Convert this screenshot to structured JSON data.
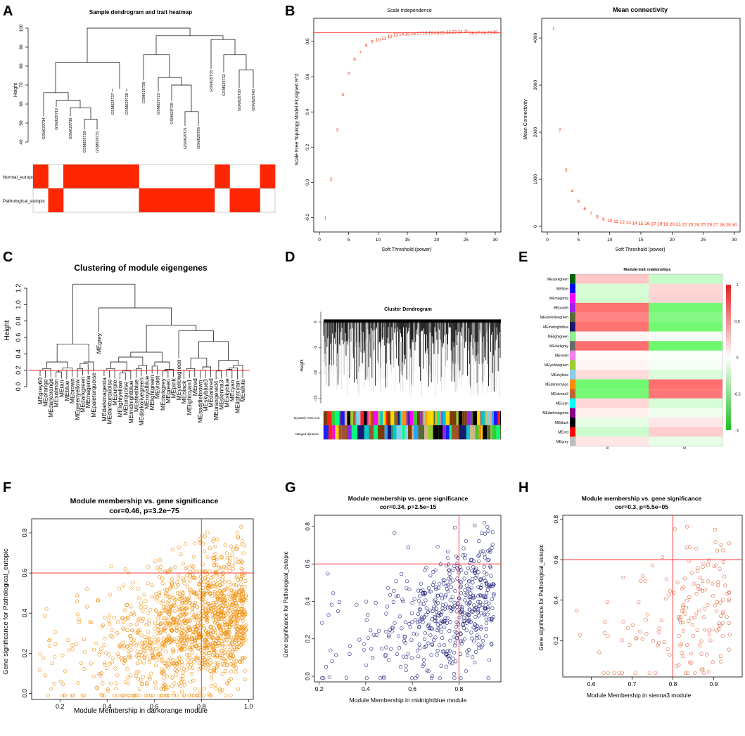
{
  "letters": [
    "A",
    "B",
    "C",
    "D",
    "E",
    "F",
    "G",
    "H"
  ],
  "colors": {
    "red": "#fe2600",
    "line": "#000000",
    "orange": "#f08a00",
    "navy": "#1a1a7a",
    "salmon": "#e0623a",
    "refline": "#ff2020"
  },
  "chart_data": [
    {
      "id": "A",
      "type": "dendrogram+heatmap",
      "title": "Sample dendrogram and trait heatmap",
      "ylabel": "Height",
      "ylim": [
        40,
        100
      ],
      "yticks": [
        "40",
        "50",
        "60",
        "70",
        "80",
        "90",
        "100"
      ],
      "samples": [
        "GSM629734",
        "GSM629719",
        "GSM629736",
        "GSM629720",
        "GSM629731",
        "GSM629737",
        "GSM629738",
        "GSM629739",
        "GSM629723",
        "GSM629728",
        "GSM629721",
        "GSM629726",
        "GSM629733",
        "GSM629732",
        "GSM629730",
        "GSM629740"
      ],
      "traits": [
        "Normal_eutopic",
        "Pathological_eutopic"
      ],
      "normal": [
        1,
        0,
        1,
        1,
        1,
        1,
        1,
        0,
        0,
        0,
        0,
        0,
        1,
        0,
        0,
        1
      ],
      "pathological": [
        0,
        1,
        0,
        0,
        0,
        0,
        0,
        1,
        1,
        1,
        1,
        1,
        0,
        1,
        1,
        0
      ]
    },
    {
      "id": "B1",
      "type": "text-scatter",
      "title": "Scale independence",
      "xlabel": "Soft Threshold (power)",
      "ylabel": "Scale Free Topology Model Fit,signed R^2",
      "xlim": [
        0,
        30
      ],
      "ylim": [
        -0.25,
        0.9
      ],
      "hline": 0.85,
      "xticks": [
        "0",
        "5",
        "10",
        "15",
        "20",
        "25",
        "30"
      ],
      "yticks": [
        "-0.2",
        "0.0",
        "0.2",
        "0.4",
        "0.6",
        "0.8"
      ],
      "x": [
        1,
        2,
        3,
        4,
        5,
        6,
        7,
        8,
        9,
        10,
        11,
        12,
        13,
        14,
        15,
        16,
        17,
        18,
        19,
        20,
        21,
        22,
        23,
        24,
        25,
        26,
        27,
        28,
        29,
        30
      ],
      "y": [
        -0.2,
        0.02,
        0.3,
        0.5,
        0.62,
        0.7,
        0.74,
        0.78,
        0.8,
        0.81,
        0.82,
        0.83,
        0.84,
        0.845,
        0.845,
        0.846,
        0.848,
        0.85,
        0.85,
        0.85,
        0.852,
        0.855,
        0.856,
        0.857,
        0.858,
        0.85,
        0.85,
        0.85,
        0.852,
        0.855
      ]
    },
    {
      "id": "B2",
      "type": "text-scatter",
      "title": "Mean connectivity",
      "xlabel": "Soft Threshold (power)",
      "ylabel": "Mean Connectivity",
      "xlim": [
        0,
        30
      ],
      "ylim": [
        0,
        4300
      ],
      "xticks": [
        "0",
        "5",
        "10",
        "15",
        "20",
        "25",
        "30"
      ],
      "yticks": [
        "0",
        "1000",
        "2000",
        "3000",
        "4000"
      ],
      "x": [
        1,
        2,
        3,
        4,
        5,
        6,
        7,
        8,
        9,
        10,
        11,
        12,
        13,
        14,
        15,
        16,
        17,
        18,
        19,
        20,
        21,
        22,
        23,
        24,
        25,
        26,
        27,
        28,
        29,
        30
      ],
      "y": [
        4200,
        2060,
        1200,
        760,
        540,
        380,
        280,
        210,
        160,
        130,
        110,
        95,
        85,
        75,
        70,
        65,
        60,
        58,
        55,
        52,
        50,
        48,
        46,
        45,
        44,
        43,
        42,
        41,
        40,
        39
      ]
    },
    {
      "id": "C",
      "type": "dendrogram",
      "title": "Clustering of module eigengenes",
      "ylabel": "Height",
      "ylim": [
        0,
        1.35
      ],
      "yticks": [
        "0.0",
        "0.2",
        "0.4",
        "0.6",
        "0.8",
        "1.0",
        "1.2"
      ],
      "cut": 0.2,
      "leaves": [
        "MEgrey60",
        "MEorange",
        "MEdarkorange",
        "MEsalmon",
        "MEtan",
        "MEblue",
        "MEbrown",
        "MEgreenyellow",
        "MEdarkgreen",
        "MEmagenta",
        "MEpaleturquoise",
        "MEgrey",
        "MEdarkmagenta",
        "MEdarkturquoise",
        "MEpurple",
        "MElightyellow",
        "MEturquoise",
        "MEmidnightblue",
        "MEsteelblue",
        "MEdarkolivegreen",
        "MEroyalblue",
        "MElightgreen",
        "MEviolet",
        "MEdarkgrey",
        "MEgreen",
        "MEpink",
        "MEyellowgreen",
        "MEblack",
        "MElightcyan1",
        "MEred",
        "MEsaddlebrown",
        "MEskyblue3",
        "MEdarkred",
        "MEorangered4",
        "MEsienna3",
        "MEskyblue",
        "MEcyan",
        "MElightcyan",
        "MEwhite"
      ]
    },
    {
      "id": "D",
      "type": "dendrogram+colorbars",
      "title": "Cluster Dendrogram",
      "ylabel": "Height",
      "yticks": [
        "0",
        "-5",
        "-10",
        "-15"
      ],
      "rows": [
        "Dynamic Tree Cut",
        "Merged dynamic"
      ],
      "palette": [
        "#2aa0ff",
        "#ff8c00",
        "#00c8c8",
        "#7a3a00",
        "#ff2020",
        "#8a2be2",
        "#1a1aff",
        "#ffd700",
        "#32cd32",
        "#ff69b4",
        "#000000",
        "#a0522d",
        "#87ceeb",
        "#556b2f",
        "#ff00ff",
        "#d2b48c",
        "#9acd32",
        "#191970",
        "#ffa500",
        "#00ff7f"
      ]
    },
    {
      "id": "E",
      "type": "heatmap",
      "title": "Module-trait relationships",
      "columns": [
        "EU",
        "EC"
      ],
      "rows": [
        "MEdarkgreen",
        "MEblue",
        "MEmagenta",
        "MEpurple",
        "MEdarkolivegreen",
        "MEmidnightblue",
        "MElightgreen",
        "MEdarkgrey",
        "MEviolet",
        "MEyellowgreen",
        "MEskyblue",
        "MEdarkorange",
        "MEsienna3",
        "MEcyan",
        "MEdarkmagenta",
        "MEblack",
        "MEred",
        "MEgrey"
      ],
      "row_colors": [
        "#006400",
        "#0000ff",
        "#ff00ff",
        "#a020f0",
        "#556b2f",
        "#191970",
        "#90ee90",
        "#696969",
        "#ee82ee",
        "#9acd32",
        "#87ceeb",
        "#ff8c00",
        "#c0662c",
        "#00ffff",
        "#8b008b",
        "#000000",
        "#ff0000",
        "#bebebe"
      ],
      "eu": [
        0.28,
        -0.2,
        -0.22,
        0.7,
        0.62,
        0.7,
        0.05,
        0.72,
        0.02,
        0.05,
        0.18,
        -0.72,
        -0.68,
        0.2,
        0.08,
        -0.12,
        -0.25,
        0.12
      ],
      "ec": [
        -0.28,
        0.2,
        0.22,
        -0.7,
        -0.62,
        -0.7,
        -0.05,
        -0.72,
        -0.02,
        -0.05,
        -0.18,
        0.72,
        0.68,
        -0.2,
        -0.08,
        0.12,
        0.25,
        -0.12
      ],
      "legend_ticks": [
        "1",
        "0.5",
        "0",
        "-0.5",
        "-1"
      ]
    },
    {
      "id": "F",
      "type": "scatter",
      "title": "Module membership vs. gene significance",
      "subtitle": "cor=0.46, p=3.2e−75",
      "xlabel": "Module Membership in darkorange module",
      "ylabel": "Gene significance for  Pathological_eutopic",
      "xlim": [
        0.08,
        1.02
      ],
      "ylim": [
        -0.03,
        0.87
      ],
      "vline": 0.8,
      "hline": 0.6,
      "xticks": [
        "0.2",
        "0.4",
        "0.6",
        "0.8",
        "1.0"
      ],
      "yticks": [
        "0.0",
        "0.2",
        "0.4",
        "0.6",
        "0.8"
      ],
      "n": 1400,
      "cor": 0.46
    },
    {
      "id": "G",
      "type": "scatter",
      "title": "Module membership vs. gene significance",
      "subtitle": "cor=0.34, p=2.5e−15",
      "xlabel": "Module Membership in midnightblue module",
      "ylabel": "Gene significance for  Pathological_eutopic",
      "xlim": [
        0.18,
        0.98
      ],
      "ylim": [
        -0.03,
        0.86
      ],
      "vline": 0.8,
      "hline": 0.6,
      "xticks": [
        "0.2",
        "0.4",
        "0.6",
        "0.8"
      ],
      "yticks": [
        "0.0",
        "0.2",
        "0.4",
        "0.6",
        "0.8"
      ],
      "n": 520,
      "cor": 0.34
    },
    {
      "id": "H",
      "type": "scatter",
      "title": "Module membership vs. gene significance",
      "subtitle": "cor=0.3, p=5.5e−05",
      "xlabel": "Module Membership in sienna3 module",
      "ylabel": "Gene significance for  Pathological_eutopic",
      "xlim": [
        0.53,
        0.97
      ],
      "ylim": [
        0.02,
        0.82
      ],
      "vline": 0.8,
      "hline": 0.6,
      "xticks": [
        "0.6",
        "0.7",
        "0.8",
        "0.9"
      ],
      "yticks": [
        "0.2",
        "0.4",
        "0.6",
        "0.8"
      ],
      "n": 170,
      "cor": 0.3
    }
  ]
}
